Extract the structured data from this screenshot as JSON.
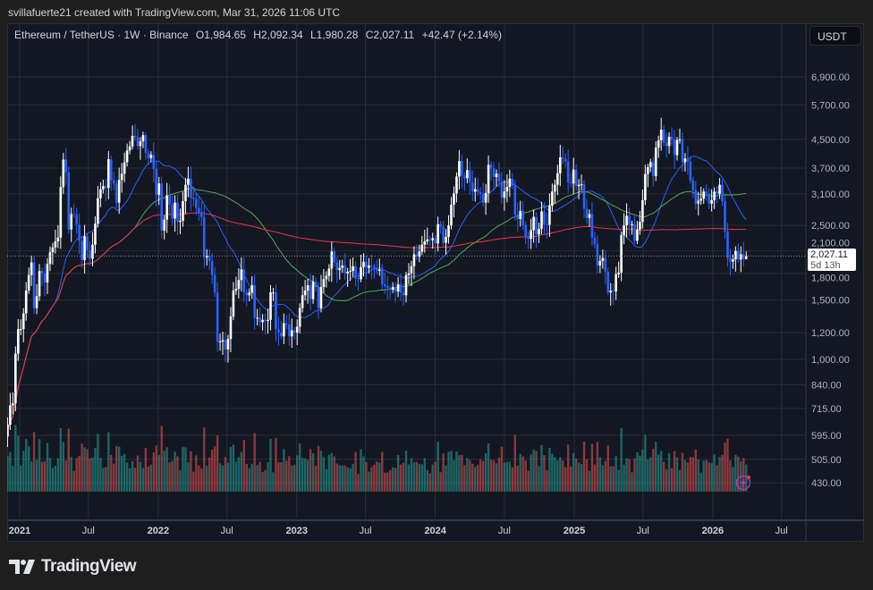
{
  "credit": "svillafuerte21 created with TradingView.com, Mar 31, 2026 11:06 UTC",
  "legend": {
    "symbol": "Ethereum / TetherUS · 1W · Binance",
    "open": "O1,984.65",
    "high": "H2,092.34",
    "low": "L1,980.28",
    "close": "C2,027.11",
    "change": "+42.47 (+2.14%)"
  },
  "currency_button": "USDT",
  "last_price": {
    "value": "2,027.11",
    "countdown": "5d 13h"
  },
  "brand": "TradingView",
  "colors": {
    "up": "#ffffff",
    "down": "#2962ff",
    "vol_up": "#26a69a",
    "vol_down": "#ef5350",
    "ma_fast": "#2962ff",
    "ma_mid": "#4caf50",
    "ma_slow": "#f23645",
    "background": "#131722",
    "grid": "#2a2e39"
  },
  "icons": {
    "logo": "tradingview-logo",
    "alert": "lightning-icon"
  },
  "chart_data": {
    "type": "candlestick",
    "title": "",
    "interval": "1W",
    "yscale": "log",
    "ylim": [
      400,
      8000
    ],
    "yticks": [
      6900,
      5700,
      4500,
      3700,
      3100,
      2500,
      2100,
      1800,
      1500,
      1200,
      1000,
      840,
      715,
      595,
      505,
      430
    ],
    "ytick_labels": [
      "6,900.00",
      "5,700.00",
      "4,500.00",
      "3,700.00",
      "3,100.00",
      "2,500.00",
      "2,100.00",
      "1,800.00",
      "1,500.00",
      "1,200.00",
      "1,000.00",
      "840.00",
      "715.00",
      "595.00",
      "505.00",
      "430.00"
    ],
    "xticks": [
      {
        "label": "2021",
        "date": "2021-01-01",
        "bold": true
      },
      {
        "label": "Jul",
        "date": "2021-07-01",
        "bold": false
      },
      {
        "label": "2022",
        "date": "2022-01-01",
        "bold": true
      },
      {
        "label": "Jul",
        "date": "2022-07-01",
        "bold": false
      },
      {
        "label": "2023",
        "date": "2023-01-01",
        "bold": true
      },
      {
        "label": "Jul",
        "date": "2023-07-01",
        "bold": false
      },
      {
        "label": "2024",
        "date": "2024-01-01",
        "bold": true
      },
      {
        "label": "Jul",
        "date": "2024-07-01",
        "bold": false
      },
      {
        "label": "2025",
        "date": "2025-01-01",
        "bold": true
      },
      {
        "label": "Jul",
        "date": "2025-07-01",
        "bold": false
      },
      {
        "label": "2026",
        "date": "2026-01-01",
        "bold": true
      },
      {
        "label": "Jul",
        "date": "2026-07-01",
        "bold": false
      }
    ],
    "grid": true,
    "moving_averages": [
      {
        "period": 20,
        "color": "#2962ff"
      },
      {
        "period": 50,
        "color": "#4caf50"
      },
      {
        "period": 200,
        "color": "#f23645"
      }
    ],
    "last_candle": {
      "open": 1984.65,
      "high": 2092.34,
      "low": 1980.28,
      "close": 2027.11
    },
    "weekly_closes": [
      590,
      640,
      730,
      740,
      1040,
      1230,
      1230,
      1370,
      1600,
      1780,
      1940,
      1420,
      1540,
      1830,
      1800,
      1690,
      1920,
      2080,
      2150,
      2240,
      2300,
      3250,
      3920,
      3590,
      2430,
      2700,
      2690,
      2510,
      2250,
      1970,
      2320,
      2110,
      1990,
      2190,
      2530,
      3010,
      3200,
      3270,
      3230,
      3930,
      3400,
      3330,
      2920,
      3410,
      3560,
      3850,
      4170,
      4290,
      4610,
      4570,
      4300,
      4440,
      4630,
      4100,
      3960,
      4050,
      3680,
      3080,
      3330,
      2410,
      2600,
      3070,
      2880,
      2620,
      2920,
      2560,
      2580,
      2950,
      3300,
      3440,
      3020,
      2990,
      2820,
      2730,
      2640,
      2010,
      2030,
      1960,
      1780,
      1580,
      1130,
      1130,
      1140,
      1070,
      1150,
      1340,
      1600,
      1620,
      1720,
      1850,
      1580,
      1550,
      1580,
      1660,
      1330,
      1330,
      1290,
      1310,
      1300,
      1310,
      1580,
      1580,
      1230,
      1200,
      1170,
      1280,
      1270,
      1170,
      1220,
      1200,
      1250,
      1420,
      1550,
      1600,
      1660,
      1510,
      1700,
      1640,
      1420,
      1640,
      1730,
      1770,
      1860,
      2090,
      1940,
      1840,
      1870,
      1900,
      1800,
      1820,
      1830,
      1890,
      1740,
      1730,
      1880,
      1950,
      1870,
      1900,
      1890,
      1860,
      1830,
      1850,
      1670,
      1650,
      1630,
      1610,
      1640,
      1590,
      1670,
      1580,
      1550,
      1780,
      1800,
      1890,
      2050,
      2020,
      2090,
      2190,
      2240,
      2270,
      2260,
      2290,
      2210,
      2520,
      2480,
      2220,
      2310,
      2500,
      2880,
      3110,
      3490,
      3880,
      3510,
      3450,
      3650,
      3350,
      3150,
      3200,
      3140,
      3100,
      2920,
      3120,
      3780,
      3700,
      3480,
      3560,
      3380,
      3020,
      3150,
      3250,
      3440,
      3280,
      2690,
      2610,
      2760,
      2510,
      2300,
      2280,
      2420,
      2650,
      2350,
      2440,
      2750,
      2520,
      2510,
      2860,
      3150,
      3300,
      3570,
      3980,
      3940,
      3870,
      3350,
      3330,
      3660,
      3270,
      3300,
      3310,
      2800,
      2630,
      2700,
      2300,
      2200,
      1900,
      1960,
      2000,
      1820,
      1580,
      1600,
      1590,
      1790,
      1810,
      2340,
      2500,
      2670,
      2510,
      2520,
      2250,
      2430,
      2560,
      2970,
      3550,
      3720,
      3850,
      3500,
      4250,
      4470,
      4810,
      4400,
      4300,
      4580,
      4490,
      4040,
      4480,
      4500,
      3850,
      3950,
      3870,
      3400,
      3180,
      2900,
      2960,
      3000,
      3150,
      3100,
      2900,
      2970,
      3150,
      3100,
      3300,
      2950,
      2400,
      2000,
      1950,
      1980,
      2100,
      1980,
      2050,
      1984.65,
      2027.11
    ]
  }
}
